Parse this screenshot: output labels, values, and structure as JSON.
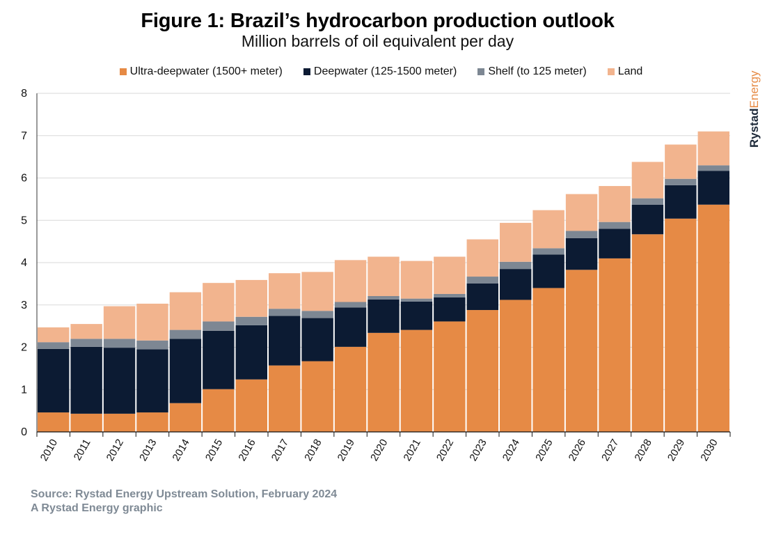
{
  "chart_data": {
    "type": "bar",
    "stacked": true,
    "title": "Figure 1: Brazil’s hydrocarbon production outlook",
    "subtitle": "Million barrels of oil equivalent per day",
    "xlabel": "",
    "ylabel": "",
    "ylim": [
      0,
      8
    ],
    "yticks": [
      "0",
      "1",
      "2",
      "3",
      "4",
      "5",
      "6",
      "7",
      "8"
    ],
    "grid": true,
    "legend_position": "top-center",
    "categories": [
      "2010",
      "2011",
      "2012",
      "2013",
      "2014",
      "2015",
      "2016",
      "2017",
      "2018",
      "2019",
      "2020",
      "2021",
      "2022",
      "2023",
      "2024",
      "2025",
      "2026",
      "2027",
      "2028",
      "2029",
      "2030"
    ],
    "series": [
      {
        "name": "Ultra-deepwater (1500+ meter)",
        "color": "#e68a45",
        "values": [
          0.46,
          0.43,
          0.43,
          0.46,
          0.68,
          1.01,
          1.24,
          1.57,
          1.67,
          2.01,
          2.34,
          2.41,
          2.61,
          2.88,
          3.12,
          3.4,
          3.83,
          4.1,
          4.67,
          5.04,
          5.37
        ]
      },
      {
        "name": "Deepwater (125-1500 meter)",
        "color": "#0c1b33",
        "values": [
          1.5,
          1.58,
          1.56,
          1.49,
          1.52,
          1.38,
          1.28,
          1.17,
          1.02,
          0.93,
          0.79,
          0.67,
          0.57,
          0.63,
          0.73,
          0.79,
          0.75,
          0.7,
          0.7,
          0.79,
          0.8
        ]
      },
      {
        "name": "Shelf (to 125 meter)",
        "color": "#7d8793",
        "values": [
          0.16,
          0.19,
          0.21,
          0.21,
          0.21,
          0.22,
          0.2,
          0.17,
          0.17,
          0.13,
          0.08,
          0.07,
          0.08,
          0.16,
          0.17,
          0.15,
          0.17,
          0.16,
          0.15,
          0.15,
          0.13
        ]
      },
      {
        "name": "Land",
        "color": "#f2b48e",
        "values": [
          0.35,
          0.35,
          0.77,
          0.87,
          0.89,
          0.91,
          0.87,
          0.84,
          0.92,
          0.99,
          0.93,
          0.89,
          0.88,
          0.88,
          0.92,
          0.9,
          0.87,
          0.85,
          0.86,
          0.81,
          0.8
        ]
      }
    ]
  },
  "footer": {
    "source": "Source: Rystad Energy Upstream Solution, February 2024",
    "credit": "A Rystad Energy graphic"
  },
  "brand": {
    "word1": "Rystad",
    "word2": "Energy",
    "color1": "#1e2a3a",
    "color2": "#e68a45"
  }
}
